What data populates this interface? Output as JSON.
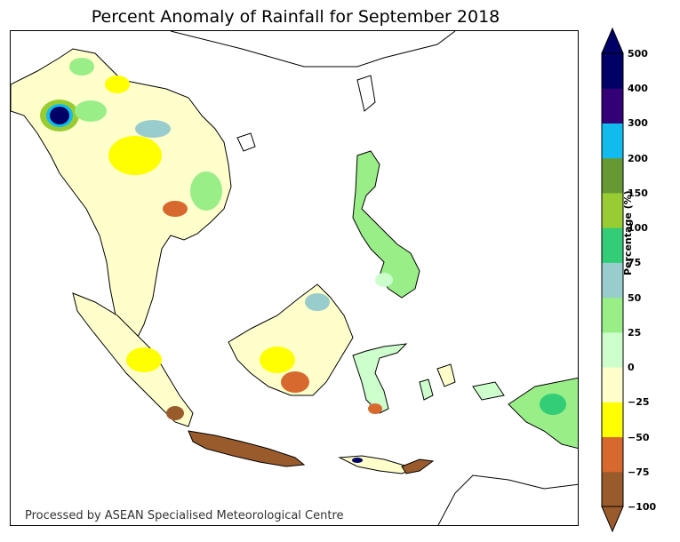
{
  "title": "Percent Anomaly of Rainfall for September 2018",
  "credit": "Processed by ASEAN Specialised Meteorological Centre",
  "colorbar": {
    "title": "Percentage (%)",
    "ticks": [
      "500",
      "400",
      "300",
      "200",
      "150",
      "100",
      "75",
      "50",
      "25",
      "0",
      "−25",
      "−50",
      "−75",
      "−100"
    ],
    "bands": [
      {
        "from": -100,
        "to": -75,
        "color": "#9a5b2c"
      },
      {
        "from": -75,
        "to": -50,
        "color": "#d8692e"
      },
      {
        "from": -50,
        "to": -25,
        "color": "#ffff00"
      },
      {
        "from": -25,
        "to": 0,
        "color": "#ffffcc"
      },
      {
        "from": 0,
        "to": 25,
        "color": "#ccffcc"
      },
      {
        "from": 25,
        "to": 50,
        "color": "#99ee88"
      },
      {
        "from": 50,
        "to": 75,
        "color": "#99cccc"
      },
      {
        "from": 75,
        "to": 100,
        "color": "#33cc77"
      },
      {
        "from": 100,
        "to": 150,
        "color": "#99cc33"
      },
      {
        "from": 150,
        "to": 200,
        "color": "#669933"
      },
      {
        "from": 200,
        "to": 300,
        "color": "#11bbee"
      },
      {
        "from": 300,
        "to": 400,
        "color": "#330077"
      },
      {
        "from": 400,
        "to": 500,
        "color": "#000066"
      }
    ],
    "extend": "both"
  }
}
